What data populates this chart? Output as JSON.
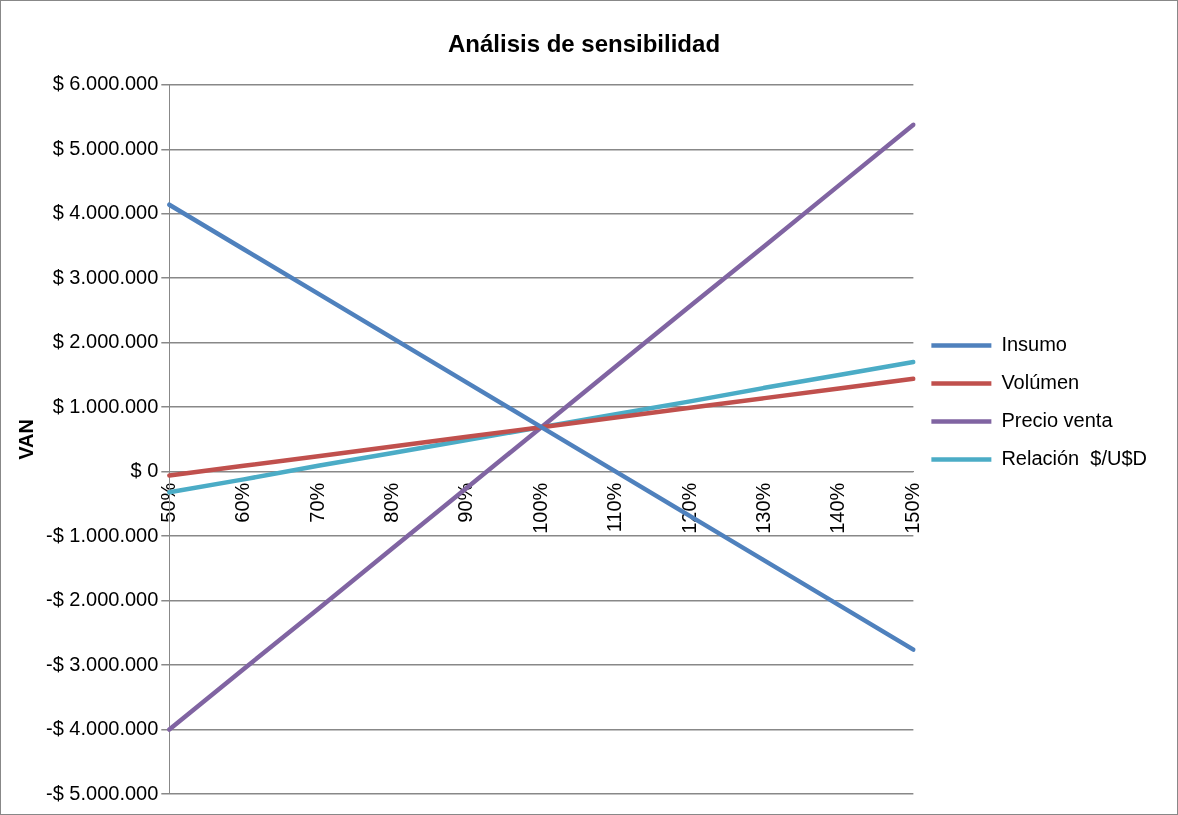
{
  "chart_data": {
    "type": "line",
    "title": "Análisis de sensibilidad",
    "ylabel": "VAN",
    "categories": [
      "50%",
      "60%",
      "70%",
      "80%",
      "90%",
      "100%",
      "110%",
      "120%",
      "130%",
      "140%",
      "150%"
    ],
    "series": [
      {
        "name": "Insumo",
        "color": "#4f81bd",
        "values": [
          4140000,
          3450000,
          2760000,
          2070000,
          1380000,
          690000,
          0,
          -690000,
          -1380000,
          -2070000,
          -2760000
        ]
      },
      {
        "name": "Volúmen",
        "color": "#c0504d",
        "values": [
          -60000,
          90000,
          240000,
          390000,
          540000,
          690000,
          840000,
          990000,
          1140000,
          1290000,
          1440000
        ]
      },
      {
        "name": "Precio venta",
        "color": "#8064a2",
        "values": [
          -4000000,
          -3060000,
          -2130000,
          -1190000,
          -250000,
          690000,
          1630000,
          2570000,
          3500000,
          4440000,
          5380000
        ]
      },
      {
        "name": "Relación  $/U$D",
        "color": "#4bacc6",
        "values": [
          -320000,
          -120000,
          90000,
          290000,
          490000,
          690000,
          890000,
          1090000,
          1300000,
          1500000,
          1700000
        ]
      }
    ],
    "ylim": [
      -5000000,
      6000000
    ],
    "yticks": [
      {
        "value": -5000000,
        "label": "-$ 5.000.000"
      },
      {
        "value": -4000000,
        "label": "-$ 4.000.000"
      },
      {
        "value": -3000000,
        "label": "-$ 3.000.000"
      },
      {
        "value": -2000000,
        "label": "-$ 2.000.000"
      },
      {
        "value": -1000000,
        "label": "-$ 1.000.000"
      },
      {
        "value": 0,
        "label": "$ 0"
      },
      {
        "value": 1000000,
        "label": "$ 1.000.000"
      },
      {
        "value": 2000000,
        "label": "$ 2.000.000"
      },
      {
        "value": 3000000,
        "label": "$ 3.000.000"
      },
      {
        "value": 4000000,
        "label": "$ 4.000.000"
      },
      {
        "value": 5000000,
        "label": "$ 5.000.000"
      },
      {
        "value": 6000000,
        "label": "$ 6.000.000"
      }
    ],
    "grid": "y",
    "legend": "right",
    "marker": "none",
    "line_style": "solid"
  }
}
